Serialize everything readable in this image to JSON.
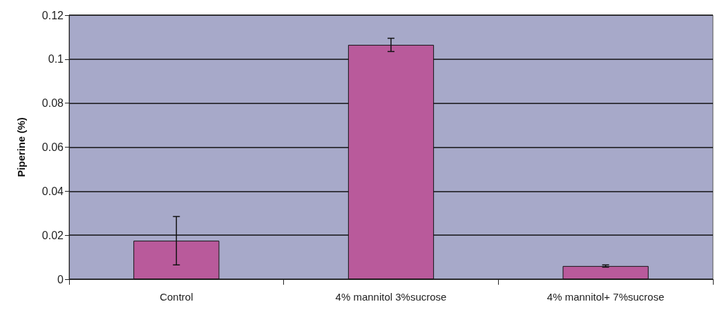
{
  "chart_data": {
    "type": "bar",
    "ylabel": "Piperine (%)",
    "categories": [
      "Control",
      "4% mannitol 3%sucrose",
      "4% mannitol+ 7%sucrose"
    ],
    "values": [
      0.0175,
      0.1065,
      0.006
    ],
    "errors": [
      0.011,
      0.003,
      0.0005
    ],
    "color": "#b95a9b",
    "ylim": [
      0,
      0.12
    ],
    "yticks": [
      0,
      0.02,
      0.04,
      0.06,
      0.08,
      0.1,
      0.12
    ],
    "grid": "y"
  }
}
